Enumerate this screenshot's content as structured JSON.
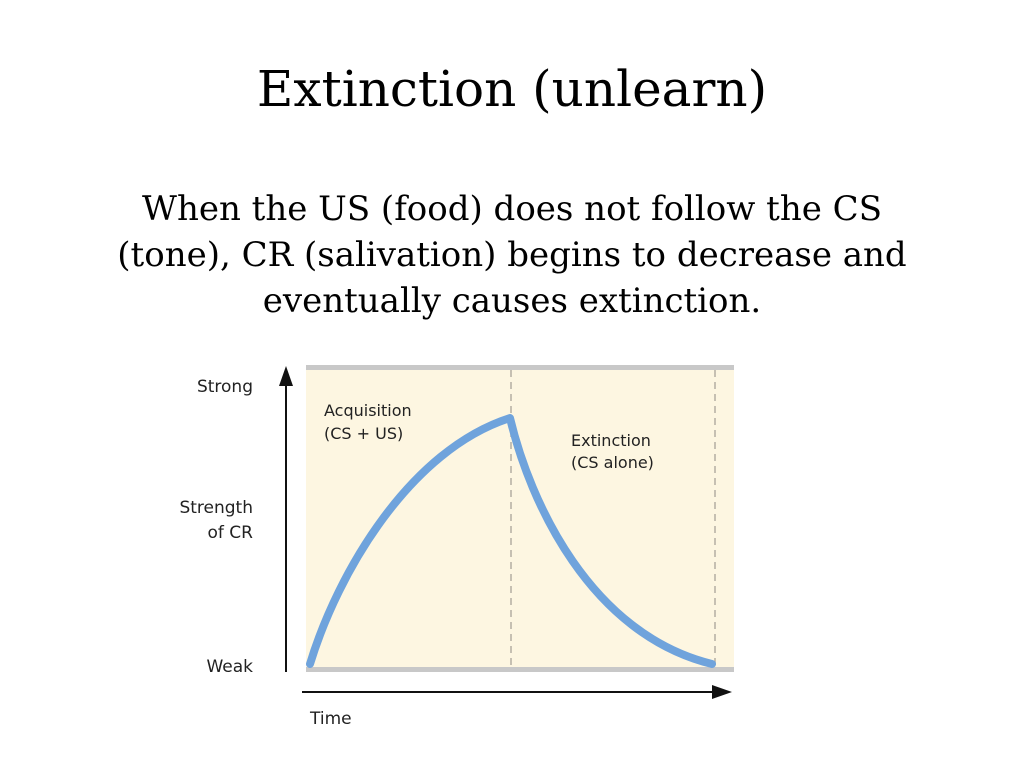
{
  "slide": {
    "title": "Extinction (unlearn)",
    "body": "When the US (food) does not follow the CS (tone), CR (salivation) begins to decrease and eventually causes extinction."
  },
  "diagram": {
    "y_axis": {
      "top_label": "Strong",
      "middle_label_line1": "Strength",
      "middle_label_line2": "of CR",
      "bottom_label": "Weak"
    },
    "x_axis": {
      "label": "Time"
    },
    "phases": [
      {
        "line1": "Acquisition",
        "line2": "(CS + US)"
      },
      {
        "line1": "Extinction",
        "line2": "(CS alone)"
      }
    ],
    "colors": {
      "panel_fill": "#fdf6e1",
      "band": "#c8c8c8",
      "curve": "#6fa3dc",
      "axis": "#111111",
      "divider": "#b8b3a6"
    }
  }
}
